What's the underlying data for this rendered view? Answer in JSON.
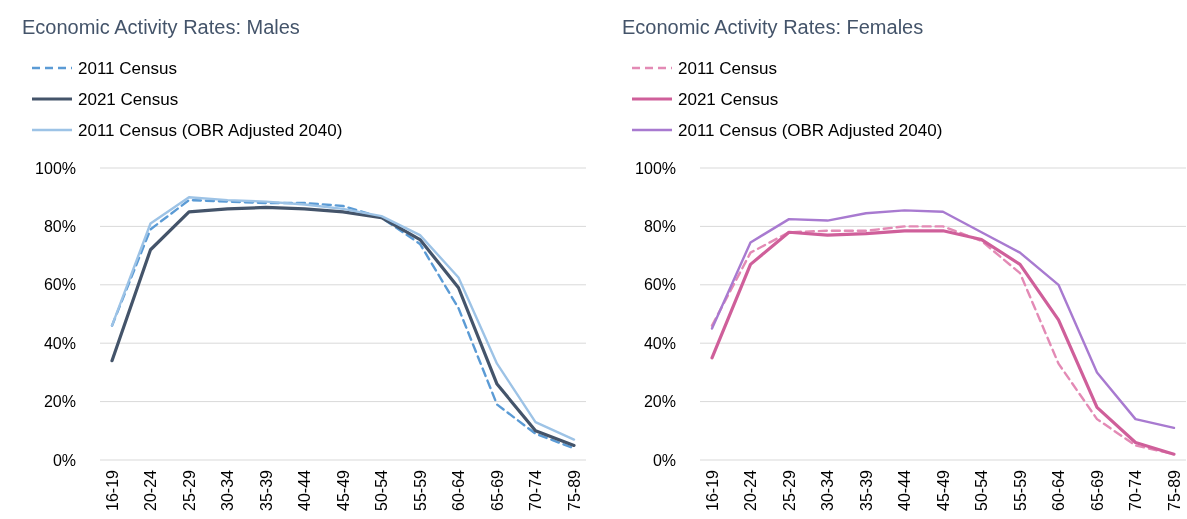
{
  "chart_data": [
    {
      "type": "line",
      "title": "Economic Activity Rates: Males",
      "categories": [
        "16-19",
        "20-24",
        "25-29",
        "30-34",
        "35-39",
        "40-44",
        "45-49",
        "50-54",
        "55-59",
        "60-64",
        "65-69",
        "70-74",
        "75-89"
      ],
      "series": [
        {
          "name": "2011 Census",
          "color": "#5b9bd5",
          "line_style": "dashed",
          "values": [
            46,
            79,
            89,
            88.5,
            88,
            88,
            87,
            83,
            74,
            52,
            19,
            9,
            4
          ]
        },
        {
          "name": "2021 Census",
          "color": "#44546a",
          "line_style": "solid",
          "values": [
            34,
            72,
            85,
            86,
            86.5,
            86,
            85,
            83,
            75.5,
            59,
            26,
            10,
            5
          ]
        },
        {
          "name": "2011 Census (OBR Adjusted 2040)",
          "color": "#9dc3e6",
          "line_style": "solid",
          "values": [
            46,
            81,
            90,
            89,
            88.5,
            87.5,
            86,
            83.5,
            77,
            62.5,
            33,
            13,
            7
          ]
        }
      ],
      "ylim": [
        0,
        100
      ],
      "yticks": [
        {
          "value": 0,
          "label": "0%"
        },
        {
          "value": 20,
          "label": "20%"
        },
        {
          "value": 40,
          "label": "40%"
        },
        {
          "value": 60,
          "label": "60%"
        },
        {
          "value": 80,
          "label": "80%"
        },
        {
          "value": 100,
          "label": "100%"
        }
      ],
      "grid": "y",
      "legend": "top left"
    },
    {
      "type": "line",
      "title": "Economic Activity Rates: Females",
      "categories": [
        "16-19",
        "20-24",
        "25-29",
        "30-34",
        "35-39",
        "40-44",
        "45-49",
        "50-54",
        "55-59",
        "60-64",
        "65-69",
        "70-74",
        "75-89"
      ],
      "series": [
        {
          "name": "2011 Census",
          "color": "#e38ab5",
          "line_style": "dashed",
          "values": [
            46,
            71,
            78,
            78.5,
            78.5,
            80,
            80,
            75,
            64,
            33,
            14,
            5,
            2
          ]
        },
        {
          "name": "2021 Census",
          "color": "#cf5f9a",
          "line_style": "solid",
          "values": [
            35,
            67,
            78,
            77,
            77.5,
            78.5,
            78.5,
            75.5,
            67,
            48,
            18,
            6,
            2
          ]
        },
        {
          "name": "2011 Census (OBR Adjusted 2040)",
          "color": "#a87ad0",
          "line_style": "solid",
          "values": [
            45,
            74.5,
            82.5,
            82,
            84.5,
            85.5,
            85,
            78,
            71,
            60,
            30,
            14,
            11
          ]
        }
      ],
      "ylim": [
        0,
        100
      ],
      "yticks": [
        {
          "value": 0,
          "label": "0%"
        },
        {
          "value": 20,
          "label": "20%"
        },
        {
          "value": 40,
          "label": "40%"
        },
        {
          "value": 60,
          "label": "60%"
        },
        {
          "value": 80,
          "label": "80%"
        },
        {
          "value": 100,
          "label": "100%"
        }
      ],
      "grid": "y",
      "legend": "top left"
    }
  ]
}
